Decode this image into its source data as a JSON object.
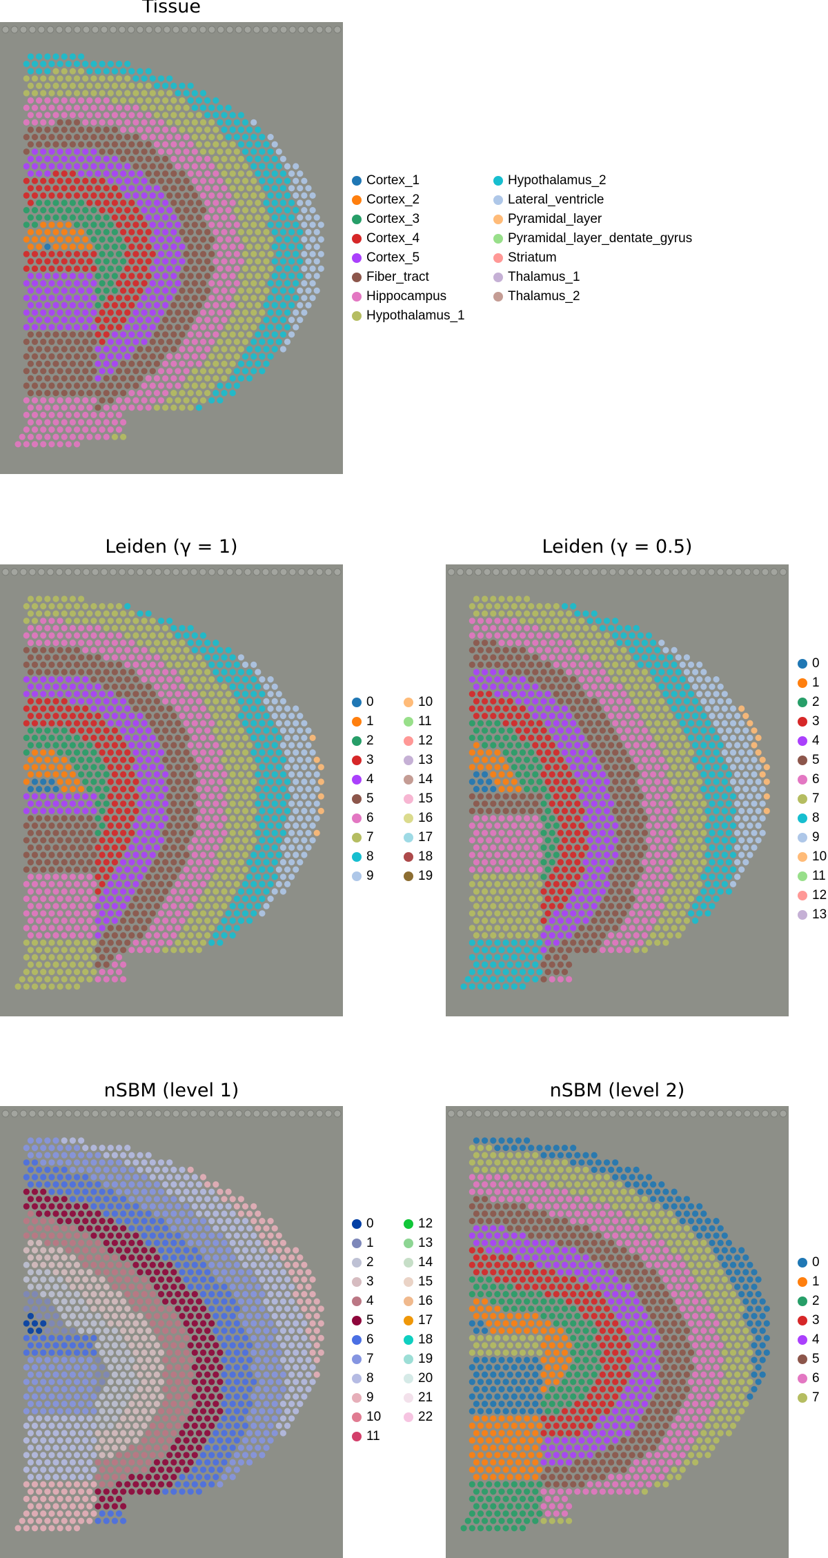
{
  "chart_data": [
    {
      "type": "scatter",
      "title": "Tissue",
      "legend_position": "right",
      "categories": [
        "Cortex_1",
        "Cortex_2",
        "Cortex_3",
        "Cortex_4",
        "Cortex_5",
        "Fiber_tract",
        "Hippocampus",
        "Hypothalamus_1",
        "Hypothalamus_2",
        "Lateral_ventricle",
        "Pyramidal_layer",
        "Pyramidal_layer_dentate_gyrus",
        "Striatum",
        "Thalamus_1",
        "Thalamus_2"
      ],
      "colors": [
        "#1f77b4",
        "#ff7f0e",
        "#279e68",
        "#d62728",
        "#aa40fc",
        "#8c564b",
        "#e377c2",
        "#b5bd61",
        "#17becf",
        "#aec7e8",
        "#ffbb78",
        "#98df8a",
        "#ff9896",
        "#c5b0d5",
        "#c49c94"
      ],
      "legend_columns": 2,
      "legend_rows": 8
    },
    {
      "type": "scatter",
      "title": "Leiden (γ = 1)",
      "legend_position": "right",
      "categories": [
        "0",
        "1",
        "2",
        "3",
        "4",
        "5",
        "6",
        "7",
        "8",
        "9",
        "10",
        "11",
        "12",
        "13",
        "14",
        "15",
        "16",
        "17",
        "18",
        "19"
      ],
      "colors": [
        "#1f77b4",
        "#ff7f0e",
        "#279e68",
        "#d62728",
        "#aa40fc",
        "#8c564b",
        "#e377c2",
        "#b5bd61",
        "#17becf",
        "#aec7e8",
        "#ffbb78",
        "#98df8a",
        "#ff9896",
        "#c5b0d5",
        "#c49c94",
        "#f7b6d2",
        "#dbdb8d",
        "#9edae5",
        "#ad494a",
        "#8c6d31"
      ],
      "legend_columns": 2,
      "legend_rows": 10
    },
    {
      "type": "scatter",
      "title": "Leiden (γ = 0.5)",
      "legend_position": "right",
      "categories": [
        "0",
        "1",
        "2",
        "3",
        "4",
        "5",
        "6",
        "7",
        "8",
        "9",
        "10",
        "11",
        "12",
        "13"
      ],
      "colors": [
        "#1f77b4",
        "#ff7f0e",
        "#279e68",
        "#d62728",
        "#aa40fc",
        "#8c564b",
        "#e377c2",
        "#b5bd61",
        "#17becf",
        "#aec7e8",
        "#ffbb78",
        "#98df8a",
        "#ff9896",
        "#c5b0d5"
      ],
      "legend_columns": 1,
      "legend_rows": 14
    },
    {
      "type": "scatter",
      "title": "nSBM (level 1)",
      "legend_position": "right",
      "categories": [
        "0",
        "1",
        "2",
        "3",
        "4",
        "5",
        "6",
        "7",
        "8",
        "9",
        "10",
        "11",
        "12",
        "13",
        "14",
        "15",
        "16",
        "17",
        "18",
        "19",
        "20",
        "21",
        "22"
      ],
      "colors": [
        "#023fa5",
        "#7d87b9",
        "#bec1d4",
        "#d6bcc0",
        "#bb7784",
        "#8e063b",
        "#4a6fe3",
        "#8595e1",
        "#b5bbe3",
        "#e6afb9",
        "#e07b91",
        "#d33f6a",
        "#11c638",
        "#8dd593",
        "#c6dec7",
        "#ead3c6",
        "#f0b98d",
        "#ef9708",
        "#0fcfc0",
        "#9cded6",
        "#d5eae7",
        "#f3e1eb",
        "#f6c4e1"
      ],
      "legend_columns": 2,
      "legend_rows": 12
    },
    {
      "type": "scatter",
      "title": "nSBM (level 2)",
      "legend_position": "right",
      "categories": [
        "0",
        "1",
        "2",
        "3",
        "4",
        "5",
        "6",
        "7"
      ],
      "colors": [
        "#1f77b4",
        "#ff7f0e",
        "#279e68",
        "#d62728",
        "#aa40fc",
        "#8c564b",
        "#e377c2",
        "#b5bd61"
      ],
      "legend_columns": 1,
      "legend_rows": 8
    }
  ]
}
